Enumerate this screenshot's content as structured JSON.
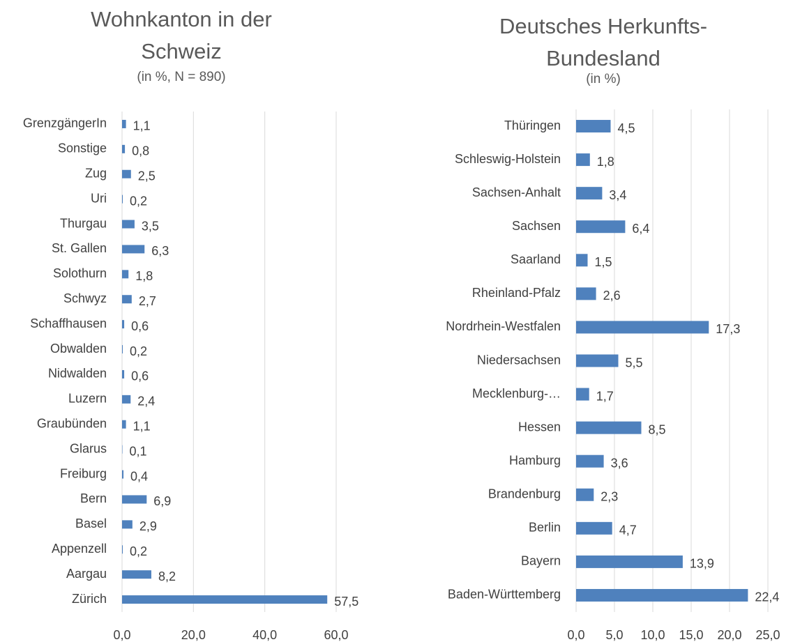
{
  "chart_data": [
    {
      "type": "barh",
      "title": "Wohnkanton in der Schweiz",
      "subtitle": "(in %, N = 890)",
      "categories": [
        "GrenzgängerIn",
        "Sonstige",
        "Zug",
        "Uri",
        "Thurgau",
        "St. Gallen",
        "Solothurn",
        "Schwyz",
        "Schaffhausen",
        "Obwalden",
        "Nidwalden",
        "Luzern",
        "Graubünden",
        "Glarus",
        "Freiburg",
        "Bern",
        "Basel",
        "Appenzell",
        "Aargau",
        "Zürich"
      ],
      "values": [
        1.1,
        0.8,
        2.5,
        0.2,
        3.5,
        6.3,
        1.8,
        2.7,
        0.6,
        0.2,
        0.6,
        2.4,
        1.1,
        0.1,
        0.4,
        6.9,
        2.9,
        0.2,
        8.2,
        57.5
      ],
      "value_labels": [
        "1,1",
        "0,8",
        "2,5",
        "0,2",
        "3,5",
        "6,3",
        "1,8",
        "2,7",
        "0,6",
        "0,2",
        "0,6",
        "2,4",
        "1,1",
        "0,1",
        "0,4",
        "6,9",
        "2,9",
        "0,2",
        "8,2",
        "57,5"
      ],
      "color": "#4f81bd",
      "xlim": [
        0,
        60
      ],
      "xticks": [
        {
          "value": 0,
          "label": "0,0"
        },
        {
          "value": 20,
          "label": "20,0"
        },
        {
          "value": 40,
          "label": "40,0"
        },
        {
          "value": 60,
          "label": "60,0"
        }
      ],
      "grid": true
    },
    {
      "type": "barh",
      "title": "Deutsches Herkunfts-Bundesland",
      "subtitle": "(in %)",
      "categories": [
        "Thüringen",
        "Schleswig-Holstein",
        "Sachsen-Anhalt",
        "Sachsen",
        "Saarland",
        "Rheinland-Pfalz",
        "Nordrhein-Westfalen",
        "Niedersachsen",
        "Mecklenburg-…",
        "Hessen",
        "Hamburg",
        "Brandenburg",
        "Berlin",
        "Bayern",
        "Baden-Württemberg"
      ],
      "values": [
        4.5,
        1.8,
        3.4,
        6.4,
        1.5,
        2.6,
        17.3,
        5.5,
        1.7,
        8.5,
        3.6,
        2.3,
        4.7,
        13.9,
        22.4
      ],
      "value_labels": [
        "4,5",
        "1,8",
        "3,4",
        "6,4",
        "1,5",
        "2,6",
        "17,3",
        "5,5",
        "1,7",
        "8,5",
        "3,6",
        "2,3",
        "4,7",
        "13,9",
        "22,4"
      ],
      "color": "#4f81bd",
      "xlim": [
        0,
        25
      ],
      "xticks": [
        {
          "value": 0,
          "label": "0,0"
        },
        {
          "value": 5,
          "label": "5,0"
        },
        {
          "value": 10,
          "label": "10,0"
        },
        {
          "value": 15,
          "label": "15,0"
        },
        {
          "value": 20,
          "label": "20,0"
        },
        {
          "value": 25,
          "label": "25,0"
        }
      ],
      "grid": true
    }
  ]
}
